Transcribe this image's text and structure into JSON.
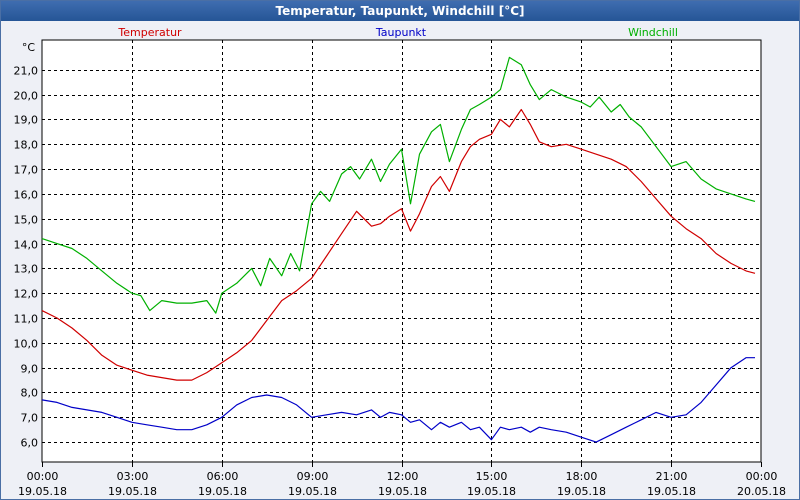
{
  "window": {
    "title": "Temperatur, Taupunkt, Windchill [°C]"
  },
  "chart_data": {
    "type": "line",
    "title": "Temperatur, Taupunkt, Windchill [°C]",
    "ylabel": "°C",
    "xlabel": "",
    "grid": true,
    "ylim": [
      5.2,
      22.2
    ],
    "y_ticks": [
      "6,0",
      "7,0",
      "8,0",
      "9,0",
      "10,0",
      "11,0",
      "12,0",
      "13,0",
      "14,0",
      "15,0",
      "16,0",
      "17,0",
      "18,0",
      "19,0",
      "20,0",
      "21,0"
    ],
    "x_ticks": [
      {
        "time": "00:00",
        "date": "19.05.18"
      },
      {
        "time": "03:00",
        "date": "19.05.18"
      },
      {
        "time": "06:00",
        "date": "19.05.18"
      },
      {
        "time": "09:00",
        "date": "19.05.18"
      },
      {
        "time": "12:00",
        "date": "19.05.18"
      },
      {
        "time": "15:00",
        "date": "19.05.18"
      },
      {
        "time": "18:00",
        "date": "19.05.18"
      },
      {
        "time": "21:00",
        "date": "19.05.18"
      },
      {
        "time": "00:00",
        "date": "20.05.18"
      }
    ],
    "xlim_hours": [
      0,
      24
    ],
    "series": [
      {
        "name": "Temperatur",
        "color": "#d00000",
        "x": [
          0,
          0.5,
          1,
          1.5,
          2,
          2.5,
          3,
          3.5,
          4,
          4.5,
          5,
          5.5,
          6,
          6.5,
          7,
          7.5,
          8,
          8.5,
          9,
          9.5,
          10,
          10.5,
          11,
          11.3,
          11.6,
          12,
          12.3,
          12.6,
          13,
          13.3,
          13.6,
          14,
          14.3,
          14.6,
          15,
          15.3,
          15.6,
          16,
          16.3,
          16.6,
          17,
          17.5,
          18,
          18.5,
          19,
          19.5,
          20,
          20.5,
          21,
          21.5,
          22,
          22.5,
          23,
          23.5,
          23.8
        ],
        "y": [
          11.3,
          11,
          10.6,
          10.1,
          9.5,
          9.1,
          8.9,
          8.7,
          8.6,
          8.5,
          8.5,
          8.8,
          9.2,
          9.6,
          10.1,
          10.9,
          11.7,
          12.1,
          12.6,
          13.5,
          14.4,
          15.3,
          14.7,
          14.8,
          15.1,
          15.4,
          14.5,
          15.2,
          16.3,
          16.7,
          16.1,
          17.3,
          17.9,
          18.2,
          18.4,
          19,
          18.7,
          19.4,
          18.8,
          18.1,
          17.9,
          18,
          17.8,
          17.6,
          17.4,
          17.1,
          16.5,
          15.8,
          15.1,
          14.6,
          14.2,
          13.6,
          13.2,
          12.9,
          12.8
        ]
      },
      {
        "name": "Taupunkt",
        "color": "#0000c8",
        "x": [
          0,
          0.5,
          1,
          1.5,
          2,
          2.5,
          3,
          3.5,
          4,
          4.5,
          5,
          5.5,
          6,
          6.5,
          7,
          7.5,
          8,
          8.5,
          9,
          9.5,
          10,
          10.5,
          11,
          11.3,
          11.6,
          12,
          12.3,
          12.6,
          13,
          13.3,
          13.6,
          14,
          14.3,
          14.6,
          15,
          15.3,
          15.6,
          16,
          16.3,
          16.6,
          17,
          17.5,
          18,
          18.5,
          19,
          19.5,
          20,
          20.5,
          21,
          21.5,
          22,
          22.5,
          23,
          23.5,
          23.8
        ],
        "y": [
          7.7,
          7.6,
          7.4,
          7.3,
          7.2,
          7,
          6.8,
          6.7,
          6.6,
          6.5,
          6.5,
          6.7,
          7,
          7.5,
          7.8,
          7.9,
          7.8,
          7.5,
          7,
          7.1,
          7.2,
          7.1,
          7.3,
          7,
          7.2,
          7.1,
          6.8,
          6.9,
          6.5,
          6.8,
          6.6,
          6.8,
          6.5,
          6.6,
          6.1,
          6.6,
          6.5,
          6.6,
          6.4,
          6.6,
          6.5,
          6.4,
          6.2,
          6,
          6.3,
          6.6,
          6.9,
          7.2,
          7,
          7.1,
          7.6,
          8.3,
          9,
          9.4,
          9.4
        ]
      },
      {
        "name": "Windchill",
        "color": "#00b000",
        "x": [
          0,
          0.5,
          1,
          1.5,
          2,
          2.5,
          3,
          3.3,
          3.6,
          4,
          4.5,
          5,
          5.5,
          5.8,
          6,
          6.5,
          7,
          7.3,
          7.6,
          8,
          8.3,
          8.6,
          9,
          9.3,
          9.6,
          10,
          10.3,
          10.6,
          11,
          11.3,
          11.6,
          12,
          12.3,
          12.6,
          13,
          13.3,
          13.6,
          14,
          14.3,
          14.6,
          15,
          15.3,
          15.6,
          16,
          16.3,
          16.6,
          17,
          17.5,
          18,
          18.3,
          18.6,
          19,
          19.3,
          19.6,
          20,
          20.5,
          21,
          21.5,
          22,
          22.5,
          23,
          23.5,
          23.8
        ],
        "y": [
          14.2,
          14,
          13.8,
          13.4,
          12.9,
          12.4,
          12,
          11.9,
          11.3,
          11.7,
          11.6,
          11.6,
          11.7,
          11.2,
          12,
          12.4,
          13,
          12.3,
          13.4,
          12.7,
          13.6,
          12.9,
          15.6,
          16.1,
          15.7,
          16.8,
          17.1,
          16.6,
          17.4,
          16.5,
          17.2,
          17.8,
          15.6,
          17.6,
          18.5,
          18.8,
          17.3,
          18.6,
          19.4,
          19.6,
          19.9,
          20.2,
          21.5,
          21.2,
          20.4,
          19.8,
          20.2,
          19.9,
          19.7,
          19.5,
          19.9,
          19.3,
          19.6,
          19.1,
          18.7,
          17.9,
          17.1,
          17.3,
          16.6,
          16.2,
          16,
          15.8,
          15.7
        ]
      }
    ]
  }
}
